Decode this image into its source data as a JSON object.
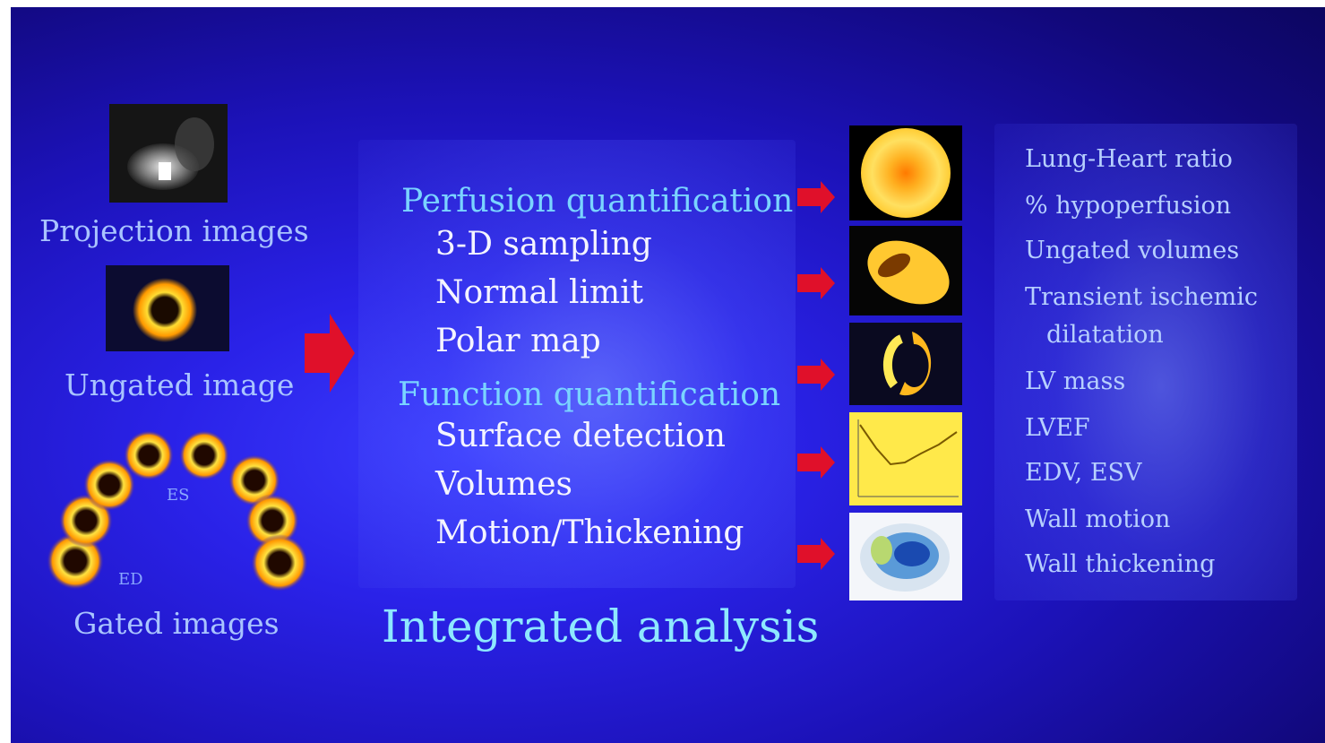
{
  "left": {
    "projection_caption": "Projection images",
    "ungated_caption": "Ungated image",
    "es_label": "ES",
    "ed_label": "ED",
    "gated_caption": "Gated images"
  },
  "center": {
    "perfusion_heading": "Perfusion quantification",
    "perfusion_items": [
      "3-D sampling",
      "Normal limit",
      "Polar map"
    ],
    "function_heading": "Function quantification",
    "function_items": [
      "Surface detection",
      "Volumes",
      "Motion/Thickening"
    ],
    "title": "Integrated analysis"
  },
  "right": {
    "parameters": [
      "Lung-Heart ratio",
      "% hypoperfusion",
      "Ungated volumes",
      "Transient ischemic",
      "dilatation",
      "LV mass",
      "LVEF",
      "EDV, ESV",
      "Wall motion",
      "Wall thickening"
    ]
  },
  "colors": {
    "background": "#1c12b8",
    "heading": "#7ad4ff",
    "item": "#f4f4ff",
    "parameter": "#b7d0ff",
    "arrow": "#e0102a"
  }
}
